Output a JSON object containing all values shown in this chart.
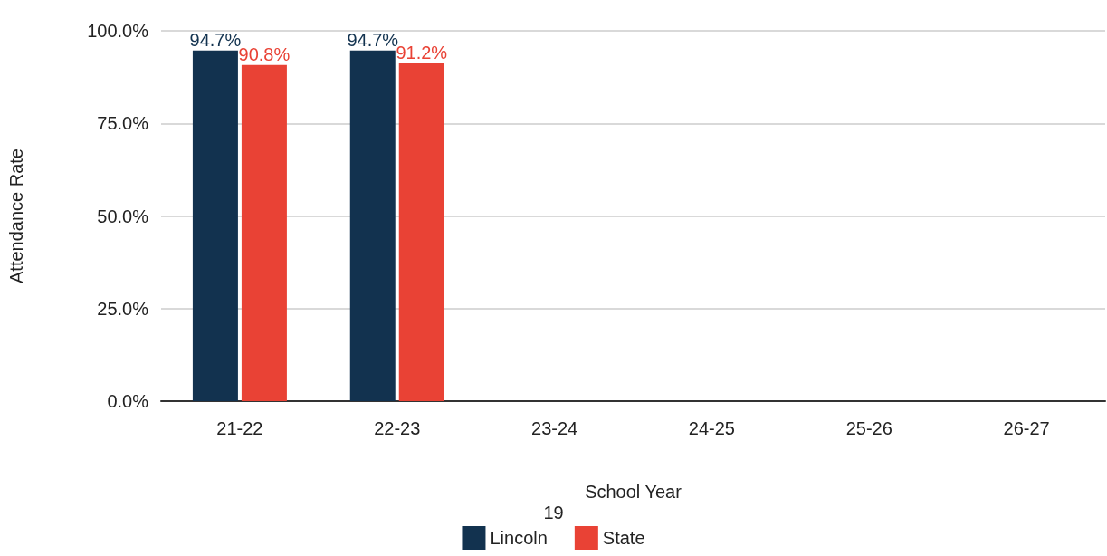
{
  "chart_data": {
    "type": "bar",
    "xlabel": "School Year",
    "ylabel": "Attendance Rate",
    "categories": [
      "21-22",
      "22-23",
      "23-24",
      "24-25",
      "25-26",
      "26-27"
    ],
    "series": [
      {
        "name": "Lincoln",
        "color": "#12324f",
        "values": [
          94.7,
          94.7,
          null,
          null,
          null,
          null
        ],
        "value_labels": [
          "94.7%",
          "94.7%",
          null,
          null,
          null,
          null
        ]
      },
      {
        "name": "State",
        "color": "#e94235",
        "values": [
          90.8,
          91.2,
          null,
          null,
          null,
          null
        ],
        "value_labels": [
          "90.8%",
          "91.2%",
          null,
          null,
          null,
          null
        ]
      }
    ],
    "ylim": [
      0,
      100
    ],
    "yticks": [
      {
        "value": 0,
        "label": "0.0%"
      },
      {
        "value": 25,
        "label": "25.0%"
      },
      {
        "value": 50,
        "label": "50.0%"
      },
      {
        "value": 75,
        "label": "75.0%"
      },
      {
        "value": 100,
        "label": "100.0%"
      }
    ],
    "grid": "y",
    "legend": "bottom",
    "annotations": [
      "19"
    ]
  }
}
